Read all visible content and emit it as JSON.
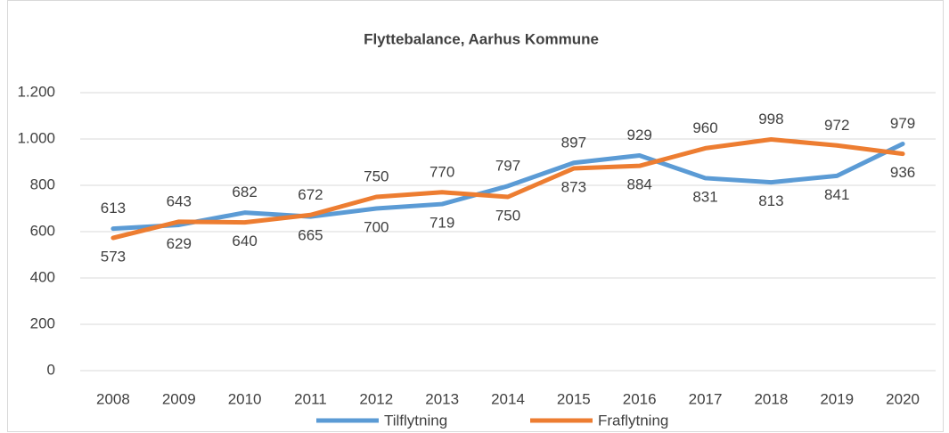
{
  "chart_data": {
    "type": "line",
    "title": "Flyttebalance, Aarhus Kommune",
    "categories": [
      "2008",
      "2009",
      "2010",
      "2011",
      "2012",
      "2013",
      "2014",
      "2015",
      "2016",
      "2017",
      "2018",
      "2019",
      "2020"
    ],
    "series": [
      {
        "name": "Tilflytning",
        "color": "#5b9bd5",
        "values": [
          613,
          629,
          682,
          665,
          700,
          719,
          797,
          897,
          929,
          831,
          813,
          841,
          979
        ]
      },
      {
        "name": "Fraflytning",
        "color": "#ed7d31",
        "values": [
          573,
          643,
          640,
          672,
          750,
          770,
          750,
          873,
          884,
          960,
          998,
          972,
          936
        ]
      }
    ],
    "ylim": [
      0,
      1200
    ],
    "yticks": [
      0,
      200,
      400,
      600,
      800,
      {
        "value": 1000,
        "label": "1.000"
      },
      {
        "value": 1200,
        "label": "1.200"
      }
    ],
    "grid": true,
    "legend": "bottom"
  }
}
